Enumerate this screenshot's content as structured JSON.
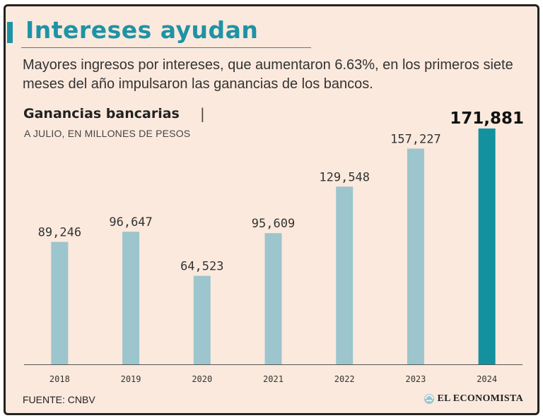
{
  "header": {
    "title": "Intereses ayudan",
    "subtitle": "Mayores ingresos por intereses, que aumentaron 6.63%, en los primeros siete meses del año impulsaron las ganancias de los bancos."
  },
  "chart_header": {
    "title": "Ganancias bancarias",
    "separator": "|",
    "unit": "A JULIO, EN MILLONES DE PESOS"
  },
  "chart_data": {
    "type": "bar",
    "title": "Ganancias bancarias",
    "subtitle": "A JULIO, EN MILLONES DE PESOS",
    "categories": [
      "2018",
      "2019",
      "2020",
      "2021",
      "2022",
      "2023",
      "2024"
    ],
    "values": [
      89246,
      96647,
      64523,
      95609,
      129548,
      157227,
      171881
    ],
    "value_labels": [
      "89,246",
      "96,647",
      "64,523",
      "95,609",
      "129,548",
      "157,227",
      "171,881"
    ],
    "highlight_index": 6,
    "xlabel": "",
    "ylabel": "",
    "ylim": [
      0,
      171881
    ],
    "grid": false,
    "legend": "none"
  },
  "colors": {
    "accent": "#1e93a5",
    "bar": "#9cc5cd",
    "bar_highlight": "#14919e",
    "background": "#fbe9dd",
    "axis": "#555555"
  },
  "footer": {
    "source": "FUENTE: CNBV",
    "brand": "EL ECONOMISTA",
    "brand_icon": "el-economista-logo"
  }
}
